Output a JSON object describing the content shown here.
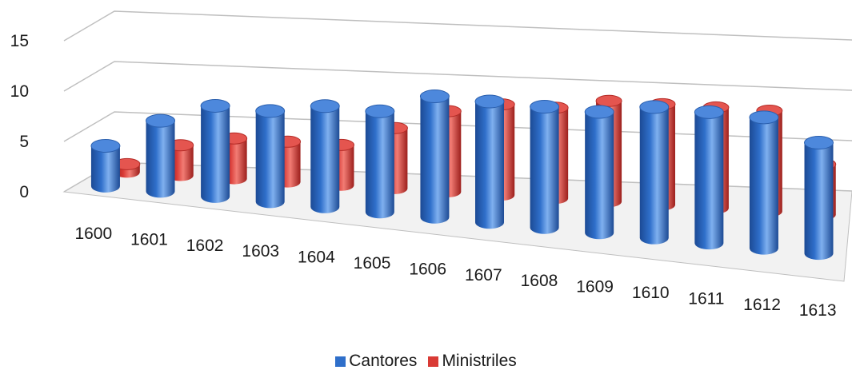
{
  "chart_data": {
    "type": "bar",
    "style": "3d-cylinder",
    "categories": [
      "1600",
      "1601",
      "1602",
      "1603",
      "1604",
      "1605",
      "1606",
      "1607",
      "1608",
      "1609",
      "1610",
      "1611",
      "1612",
      "1613"
    ],
    "series": [
      {
        "name": "Cantores",
        "color": "#2f6fca",
        "values": [
          4,
          7,
          9,
          9,
          10,
          10,
          12,
          12,
          12,
          12,
          13,
          13,
          13,
          11
        ]
      },
      {
        "name": "Ministriles",
        "color": "#d93a35",
        "values": [
          0.8,
          3,
          4,
          4,
          4,
          6,
          8,
          9,
          9,
          10,
          10,
          10,
          10,
          5
        ]
      }
    ],
    "yticks": [
      0,
      5,
      10,
      15
    ],
    "ylim": [
      0,
      15
    ],
    "grid": true,
    "legend_position": "bottom"
  }
}
